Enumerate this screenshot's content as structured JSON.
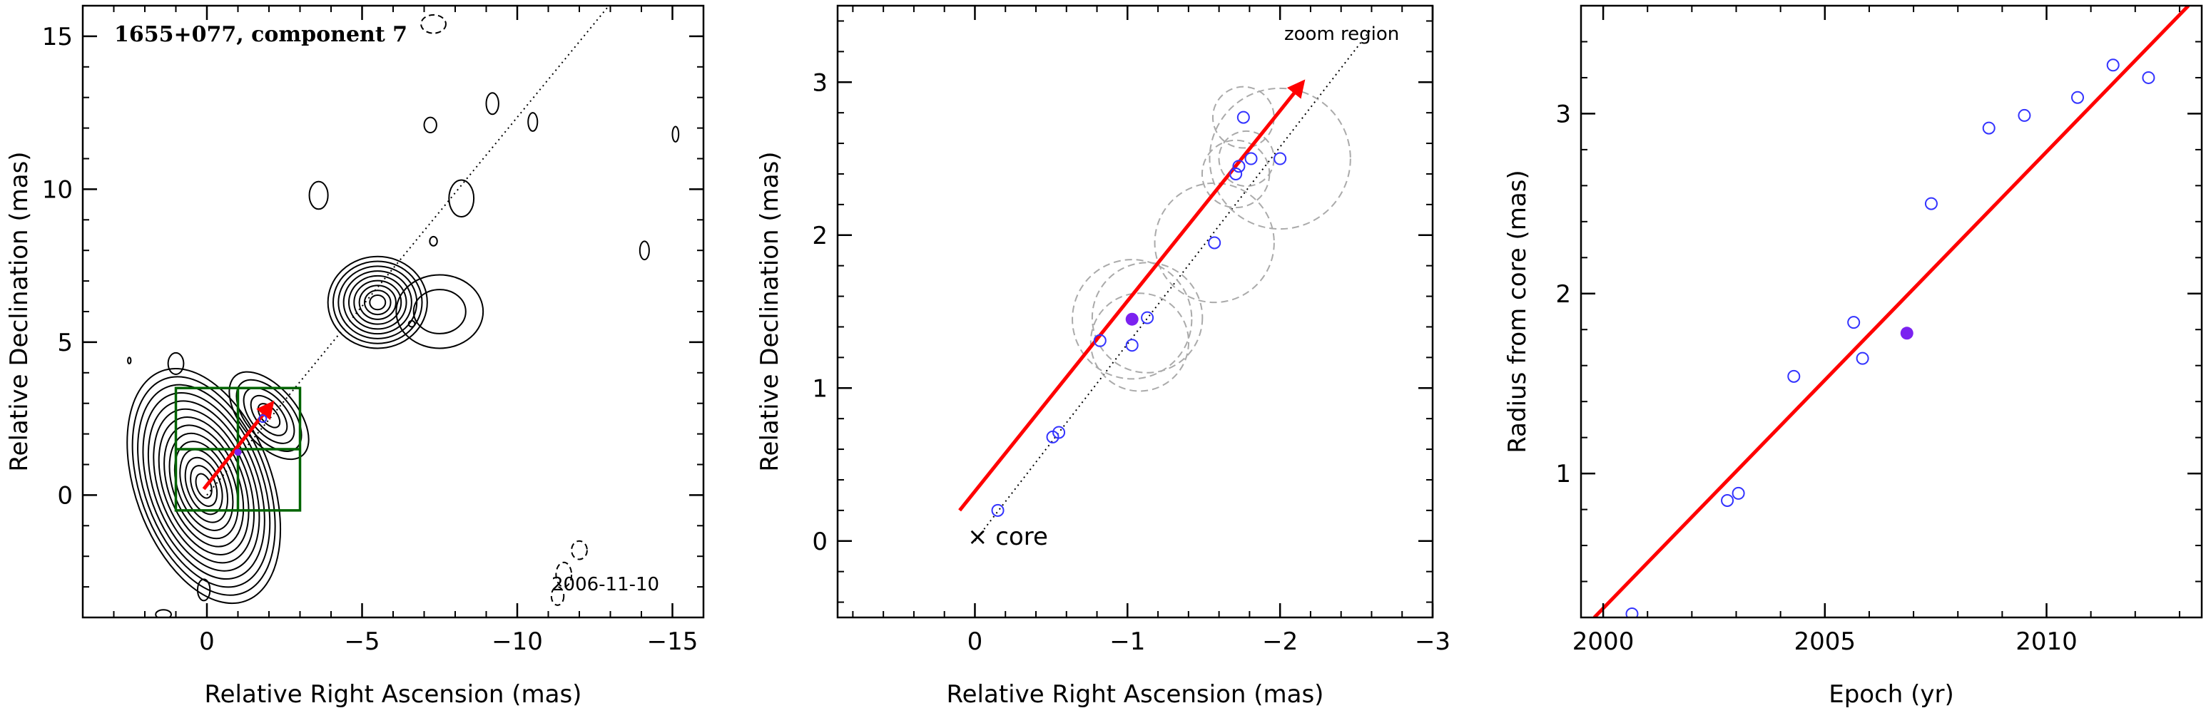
{
  "colors": {
    "axis": "#000000",
    "contour": "#000000",
    "arrow": "#ff0000",
    "zoom_box": "#006400",
    "points": "#3333ff",
    "highlight": "#7b22f0",
    "circles": "#aaaaaa"
  },
  "chart_data": [
    {
      "type": "contour",
      "title": "1655+077, component 7",
      "epoch_label": "2006-11-10",
      "xlabel": "Relative Right Ascension (mas)",
      "ylabel": "Relative Declination (mas)",
      "xlim": [
        4,
        -16
      ],
      "ylim": [
        -4,
        16
      ],
      "xticks": [
        0,
        -5,
        -10,
        -15
      ],
      "xtick_labels": [
        "0",
        "−5",
        "−10",
        "−15"
      ],
      "yticks": [
        0,
        5,
        10,
        15
      ],
      "ytick_labels": [
        "0",
        "5",
        "10",
        "15"
      ],
      "trajectory": {
        "from": [
          0,
          0
        ],
        "to": [
          -17,
          21
        ]
      },
      "motion_arrow": {
        "from": [
          0.1,
          0.2
        ],
        "to": [
          -2.1,
          3.0
        ]
      },
      "zoom_box": {
        "x_range": [
          1,
          -3
        ],
        "y_range": [
          -0.5,
          3.5
        ],
        "x_mid": -1,
        "y_mid": 1.5
      },
      "contour_groups": [
        {
          "center": [
            0.1,
            0.3
          ],
          "radii": [
            2.2,
            4.0
          ],
          "rotation": -20,
          "levels": 14
        },
        {
          "center": [
            -2.0,
            2.6
          ],
          "radii": [
            0.9,
            1.7
          ],
          "rotation": -40,
          "levels": 5
        },
        {
          "center": [
            -5.5,
            6.3
          ],
          "radii": [
            1.6,
            1.5
          ],
          "rotation": 0,
          "levels": 9
        },
        {
          "center": [
            -7.5,
            6.0
          ],
          "radii": [
            1.4,
            1.2
          ],
          "rotation": 0,
          "levels": 2
        }
      ],
      "small_contours": [
        {
          "center": [
            -3.6,
            9.8
          ],
          "radii": [
            0.3,
            0.45
          ],
          "dashed": false
        },
        {
          "center": [
            -8.2,
            9.7
          ],
          "radii": [
            0.4,
            0.6
          ],
          "dashed": false
        },
        {
          "center": [
            -9.2,
            12.8
          ],
          "radii": [
            0.2,
            0.35
          ],
          "dashed": false
        },
        {
          "center": [
            -10.5,
            12.2
          ],
          "radii": [
            0.15,
            0.3
          ],
          "dashed": false
        },
        {
          "center": [
            -14.1,
            8.0
          ],
          "radii": [
            0.15,
            0.3
          ],
          "dashed": false
        },
        {
          "center": [
            -15.1,
            11.8
          ],
          "radii": [
            0.1,
            0.25
          ],
          "dashed": false
        },
        {
          "center": [
            1.0,
            4.3
          ],
          "radii": [
            0.25,
            0.35
          ],
          "dashed": false
        },
        {
          "center": [
            2.5,
            4.4
          ],
          "radii": [
            0.05,
            0.1
          ],
          "dashed": false
        },
        {
          "center": [
            -7.2,
            12.1
          ],
          "radii": [
            0.2,
            0.25
          ],
          "dashed": false
        },
        {
          "center": [
            -7.3,
            15.4
          ],
          "radii": [
            0.4,
            0.3
          ],
          "dashed": true
        },
        {
          "center": [
            -11.5,
            -2.6
          ],
          "radii": [
            0.25,
            0.4
          ],
          "dashed": true
        },
        {
          "center": [
            -12.0,
            -1.8
          ],
          "radii": [
            0.25,
            0.3
          ],
          "dashed": true
        },
        {
          "center": [
            -11.3,
            -3.3
          ],
          "radii": [
            0.2,
            0.3
          ],
          "dashed": true
        },
        {
          "center": [
            0.1,
            -3.1
          ],
          "radii": [
            0.2,
            0.35
          ],
          "dashed": false
        },
        {
          "center": [
            1.4,
            -3.9
          ],
          "radii": [
            0.25,
            0.15
          ],
          "dashed": false
        },
        {
          "center": [
            -7.3,
            8.3
          ],
          "radii": [
            0.12,
            0.15
          ],
          "dashed": false
        },
        {
          "center": [
            -6.6,
            5.6
          ],
          "radii": [
            0.1,
            0.1
          ],
          "dashed": false
        }
      ]
    },
    {
      "type": "scatter",
      "xlabel": "Relative Right Ascension (mas)",
      "ylabel": "Relative Declination (mas)",
      "xlim": [
        0.9,
        -3.0
      ],
      "ylim": [
        -0.5,
        3.5
      ],
      "xticks": [
        0,
        -1,
        -2,
        -3
      ],
      "xtick_labels": [
        "0",
        "−1",
        "−2",
        "−3"
      ],
      "yticks": [
        0,
        1,
        2,
        3
      ],
      "ytick_labels": [
        "0",
        "1",
        "2",
        "3"
      ],
      "annotations": {
        "core": "× core",
        "zoom": "zoom region"
      },
      "trajectory": {
        "from": [
          0,
          0
        ],
        "to": [
          -2.6,
          3.35
        ]
      },
      "motion_arrow": {
        "from": [
          0.1,
          0.2
        ],
        "to": [
          -2.15,
          3.0
        ]
      },
      "points": [
        {
          "x": -0.15,
          "y": 0.2
        },
        {
          "x": -0.51,
          "y": 0.68
        },
        {
          "x": -0.55,
          "y": 0.71
        },
        {
          "x": -0.82,
          "y": 1.31
        },
        {
          "x": -1.03,
          "y": 1.28
        },
        {
          "x": -1.13,
          "y": 1.46
        },
        {
          "x": -1.57,
          "y": 1.95
        },
        {
          "x": -1.71,
          "y": 2.4
        },
        {
          "x": -1.73,
          "y": 2.45
        },
        {
          "x": -1.81,
          "y": 2.5
        },
        {
          "x": -1.76,
          "y": 2.77
        },
        {
          "x": -2.0,
          "y": 2.5
        }
      ],
      "highlight": {
        "x": -1.03,
        "y": 1.45
      },
      "circles": [
        {
          "x": -1.03,
          "y": 1.45,
          "r": 0.39
        },
        {
          "x": -1.08,
          "y": 1.3,
          "r": 0.32
        },
        {
          "x": -1.13,
          "y": 1.46,
          "r": 0.36
        },
        {
          "x": -1.57,
          "y": 1.95,
          "r": 0.39
        },
        {
          "x": -1.71,
          "y": 2.4,
          "r": 0.22
        },
        {
          "x": -1.78,
          "y": 2.5,
          "r": 0.18
        },
        {
          "x": -1.76,
          "y": 2.77,
          "r": 0.2
        },
        {
          "x": -2.0,
          "y": 2.5,
          "r": 0.46
        }
      ]
    },
    {
      "type": "scatter",
      "xlabel": "Epoch (yr)",
      "ylabel": "Radius from core (mas)",
      "xlim": [
        1999.5,
        2013.5
      ],
      "ylim": [
        0.2,
        3.6
      ],
      "xticks": [
        2000,
        2005,
        2010
      ],
      "xtick_labels": [
        "2000",
        "2005",
        "2010"
      ],
      "yticks": [
        1,
        2,
        3
      ],
      "ytick_labels": [
        "1",
        "2",
        "3"
      ],
      "fit_line": {
        "from": [
          1999.8,
          0.2
        ],
        "to": [
          2013.2,
          3.6
        ]
      },
      "points": [
        {
          "x": 2000.65,
          "y": 0.22
        },
        {
          "x": 2002.8,
          "y": 0.85
        },
        {
          "x": 2003.05,
          "y": 0.89
        },
        {
          "x": 2004.3,
          "y": 1.54
        },
        {
          "x": 2005.65,
          "y": 1.84
        },
        {
          "x": 2005.85,
          "y": 1.64
        },
        {
          "x": 2007.4,
          "y": 2.5
        },
        {
          "x": 2008.7,
          "y": 2.92
        },
        {
          "x": 2009.5,
          "y": 2.99
        },
        {
          "x": 2010.7,
          "y": 3.09
        },
        {
          "x": 2011.5,
          "y": 3.27
        },
        {
          "x": 2012.3,
          "y": 3.2
        }
      ],
      "highlight": {
        "x": 2006.85,
        "y": 1.78
      }
    }
  ]
}
